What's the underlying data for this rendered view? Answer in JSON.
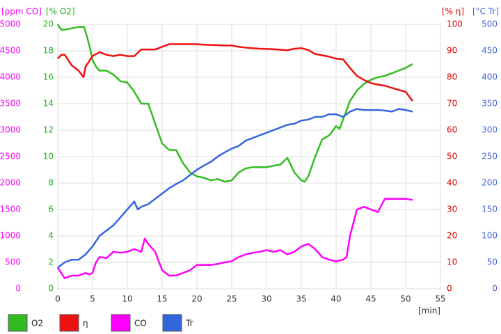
{
  "chart_data": {
    "type": "line",
    "x_label": "[min]",
    "xlim": [
      0,
      55
    ],
    "xticks": [
      0,
      5,
      10,
      15,
      20,
      25,
      30,
      35,
      40,
      45,
      50,
      55
    ],
    "grid": true,
    "y_axes": [
      {
        "label": "[ppm CO]",
        "color": "#ff00ff",
        "lim": [
          0,
          5000
        ],
        "ticks": [
          0,
          500,
          1000,
          1500,
          2000,
          2500,
          3000,
          3500,
          4000,
          4500,
          5000
        ]
      },
      {
        "label": "[% O2]",
        "color": "#22aa22",
        "lim": [
          0,
          20
        ],
        "ticks": [
          0,
          2,
          4,
          6,
          8,
          10,
          12,
          14,
          16,
          18,
          20
        ]
      },
      {
        "label": "[% η]",
        "color": "#dd0000",
        "lim": [
          0,
          100
        ],
        "ticks": [
          0,
          10,
          20,
          30,
          40,
          50,
          60,
          70,
          80,
          90,
          100
        ]
      },
      {
        "label": "[°C Tr]",
        "color": "#4466dd",
        "lim": [
          0,
          500
        ],
        "ticks": [
          0,
          50,
          100,
          150,
          200,
          250,
          300,
          350,
          400,
          450,
          500
        ]
      }
    ],
    "series": [
      {
        "name": "O2",
        "color": "#33bb22",
        "axis": 1,
        "x": [
          0,
          0.5,
          1,
          2,
          3,
          3.8,
          4.5,
          5,
          5.5,
          6,
          7,
          8,
          9,
          10,
          11,
          12,
          13,
          14,
          15,
          16,
          17,
          18,
          19,
          20,
          21,
          22,
          23,
          24,
          25,
          26,
          27,
          28,
          29,
          30,
          31,
          32,
          33,
          34,
          35,
          35.5,
          36,
          37,
          38,
          39,
          40,
          40.5,
          41,
          42,
          43,
          44,
          45,
          46,
          47,
          48,
          49,
          50,
          51
        ],
        "values": [
          20,
          19.6,
          19.6,
          19.7,
          19.8,
          19.8,
          18.5,
          17.3,
          16.8,
          16.5,
          16.5,
          16.2,
          15.7,
          15.6,
          14.9,
          14.0,
          14.0,
          12.5,
          11.0,
          10.5,
          10.5,
          9.5,
          8.8,
          8.5,
          8.4,
          8.2,
          8.3,
          8.1,
          8.2,
          8.8,
          9.1,
          9.2,
          9.2,
          9.2,
          9.3,
          9.4,
          9.9,
          8.8,
          8.2,
          8.1,
          8.5,
          10.0,
          11.3,
          11.6,
          12.3,
          12.1,
          12.8,
          14.2,
          15.0,
          15.5,
          15.8,
          16.0,
          16.1,
          16.3,
          16.5,
          16.7,
          17.0
        ]
      },
      {
        "name": "η",
        "color": "#ee1111",
        "axis": 2,
        "x": [
          0,
          0.5,
          1,
          2,
          3,
          3.7,
          4,
          5,
          6,
          7,
          8,
          9,
          10,
          11,
          12,
          13,
          14,
          15,
          16,
          17,
          18,
          19,
          20,
          21,
          22,
          23,
          24,
          25,
          26,
          27,
          28,
          29,
          30,
          31,
          32,
          33,
          34,
          35,
          36,
          37,
          38,
          39,
          40,
          41,
          42,
          43,
          44,
          45,
          46,
          47,
          48,
          49,
          50,
          51
        ],
        "values": [
          87,
          88.5,
          88.5,
          84.5,
          82.5,
          80,
          84,
          88,
          89.5,
          88.5,
          88,
          88.5,
          88,
          88,
          90.5,
          90.5,
          90.5,
          91.5,
          92.5,
          92.5,
          92.5,
          92.5,
          92.5,
          92.3,
          92.2,
          92.1,
          92,
          92,
          91.5,
          91.2,
          91,
          90.8,
          90.7,
          90.6,
          90.4,
          90.2,
          90.8,
          91,
          90.3,
          88.8,
          88.3,
          87.8,
          87,
          86.8,
          83.5,
          80.5,
          79,
          77.8,
          77.2,
          76.8,
          76,
          75.2,
          74.5,
          71
        ]
      },
      {
        "name": "CO",
        "color": "#ff00ff",
        "axis": 0,
        "x": [
          0,
          0.5,
          1,
          2,
          3,
          4,
          4.5,
          5,
          5.5,
          6,
          7,
          8,
          9,
          10,
          11,
          12,
          12.5,
          13,
          14,
          15,
          16,
          17,
          18,
          19,
          20,
          21,
          22,
          23,
          24,
          25,
          26,
          27,
          28,
          29,
          30,
          31,
          32,
          33,
          34,
          35,
          36,
          37,
          38,
          39,
          40,
          41,
          41.5,
          42,
          43,
          44,
          45,
          46,
          47,
          48,
          49,
          50,
          51
        ],
        "values": [
          400,
          300,
          200,
          250,
          250,
          300,
          270,
          300,
          500,
          600,
          580,
          700,
          680,
          700,
          750,
          700,
          950,
          850,
          700,
          350,
          250,
          250,
          300,
          350,
          450,
          450,
          450,
          470,
          500,
          520,
          600,
          650,
          680,
          700,
          730,
          700,
          730,
          650,
          700,
          800,
          850,
          750,
          600,
          550,
          520,
          550,
          600,
          1000,
          1500,
          1550,
          1500,
          1450,
          1700,
          1700,
          1700,
          1700,
          1680
        ]
      },
      {
        "name": "Tr",
        "color": "#3366dd",
        "axis": 3,
        "x": [
          0,
          1,
          2,
          3,
          4,
          5,
          6,
          7,
          8,
          9,
          10,
          11,
          11.5,
          12,
          13,
          14,
          15,
          16,
          17,
          18,
          19,
          20,
          21,
          22,
          23,
          24,
          25,
          26,
          27,
          28,
          29,
          30,
          31,
          32,
          33,
          34,
          35,
          36,
          37,
          38,
          39,
          40,
          41,
          42,
          43,
          44,
          45,
          46,
          47,
          48,
          49,
          50,
          51
        ],
        "values": [
          40,
          50,
          55,
          55,
          65,
          80,
          100,
          110,
          120,
          135,
          150,
          165,
          150,
          155,
          160,
          170,
          180,
          190,
          198,
          205,
          215,
          225,
          233,
          240,
          250,
          258,
          265,
          270,
          280,
          285,
          290,
          295,
          300,
          305,
          310,
          312,
          318,
          320,
          325,
          325,
          330,
          330,
          325,
          335,
          340,
          338,
          338,
          338,
          337,
          335,
          340,
          338,
          335
        ]
      }
    ]
  }
}
